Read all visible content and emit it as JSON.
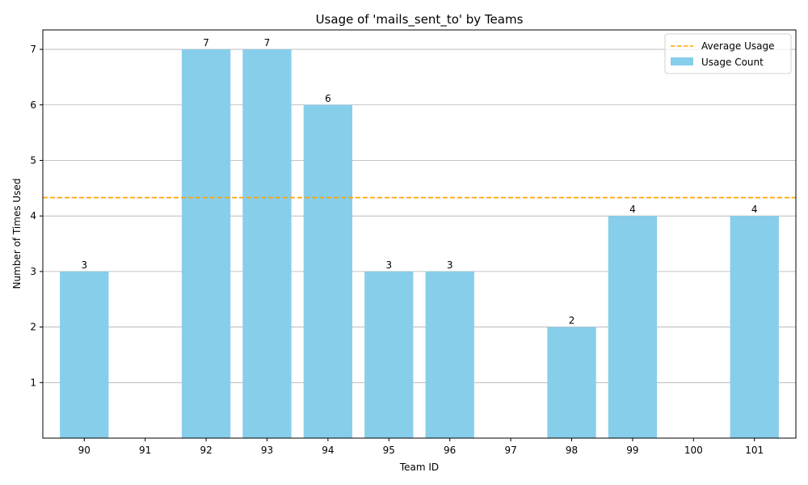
{
  "chart_data": {
    "type": "bar",
    "title": "Usage of 'mails_sent_to' by Teams",
    "xlabel": "Team ID",
    "ylabel": "Number of Times Used",
    "categories": [
      "90",
      "91",
      "92",
      "93",
      "94",
      "95",
      "96",
      "97",
      "98",
      "99",
      "100",
      "101"
    ],
    "series": [
      {
        "name": "Usage Count",
        "values": [
          3,
          null,
          7,
          7,
          6,
          3,
          3,
          null,
          2,
          4,
          null,
          4
        ]
      }
    ],
    "data_labels": [
      "3",
      "",
      "7",
      "7",
      "6",
      "3",
      "3",
      "",
      "2",
      "4",
      "",
      "4"
    ],
    "average_line": {
      "name": "Average Usage",
      "value": 4.33
    },
    "ylim": [
      0,
      7.35
    ],
    "yticks": [
      1,
      2,
      3,
      4,
      5,
      6,
      7
    ],
    "grid": "y",
    "legend_position": "top-right",
    "colors": {
      "bar": "#87ceeb",
      "average": "#ffa500",
      "grid": "#b0b0b0"
    }
  }
}
